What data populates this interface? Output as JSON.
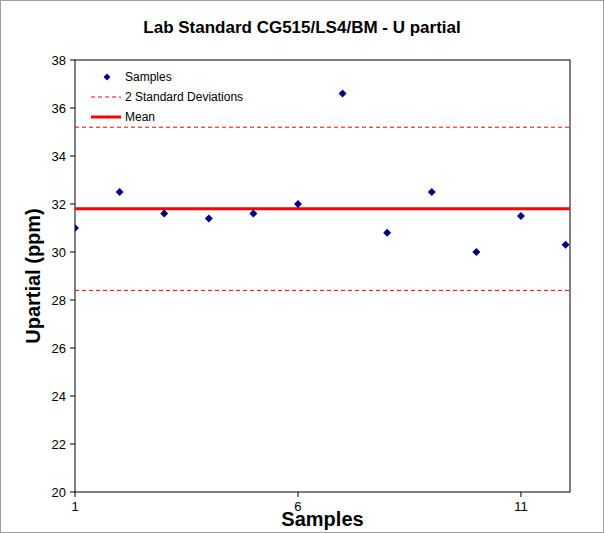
{
  "chart_data": {
    "type": "scatter",
    "title": "Lab Standard CG515/LS4/BM - U partial",
    "x_label": "Samples",
    "y_label": "Upartial (ppm)",
    "x": [
      1,
      2,
      3,
      4,
      5,
      6,
      7,
      8,
      9,
      10,
      11,
      12
    ],
    "series": [
      {
        "name": "Samples",
        "type": "scatter",
        "marker": "diamond",
        "color": "#000080",
        "values": [
          31.0,
          32.5,
          31.6,
          31.4,
          31.6,
          32.0,
          36.6,
          30.8,
          32.5,
          30.0,
          31.5,
          30.3
        ]
      }
    ],
    "reference_lines": [
      {
        "name": "2 Standard Deviations",
        "color": "#ff0000",
        "line_style": "dashed",
        "values": [
          35.2,
          28.4
        ]
      },
      {
        "name": "Mean",
        "color": "#ff0000",
        "line_style": "solid",
        "values": [
          31.8
        ]
      }
    ],
    "xlim": [
      1,
      12.1
    ],
    "xticks": [
      1,
      6,
      11
    ],
    "ylim": [
      20,
      38
    ],
    "yticks": [
      20,
      22,
      24,
      26,
      28,
      30,
      32,
      34,
      36,
      38
    ],
    "grid": false,
    "legend": "top-left"
  }
}
